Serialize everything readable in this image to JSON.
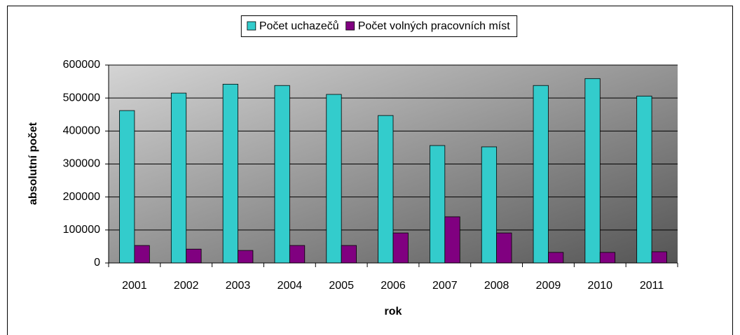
{
  "chart_data": {
    "type": "bar",
    "x_label": "rok",
    "y_label": "absolutní počet",
    "categories": [
      "2001",
      "2002",
      "2003",
      "2004",
      "2005",
      "2006",
      "2007",
      "2008",
      "2009",
      "2010",
      "2011"
    ],
    "series": [
      {
        "name": "Počet uchazečů",
        "color": "#33cccc",
        "values": [
          462000,
          515000,
          542000,
          538000,
          511000,
          447000,
          356000,
          352000,
          538000,
          559000,
          506000
        ]
      },
      {
        "name": "Počet volných pracovních míst",
        "color": "#800080",
        "values": [
          53000,
          42000,
          38000,
          53000,
          53000,
          91000,
          140000,
          91000,
          32000,
          32000,
          34000
        ]
      }
    ],
    "ylim": [
      0,
      600000
    ],
    "yticks": [
      0,
      100000,
      200000,
      300000,
      400000,
      500000,
      600000
    ],
    "grid": true,
    "legend": "top"
  }
}
